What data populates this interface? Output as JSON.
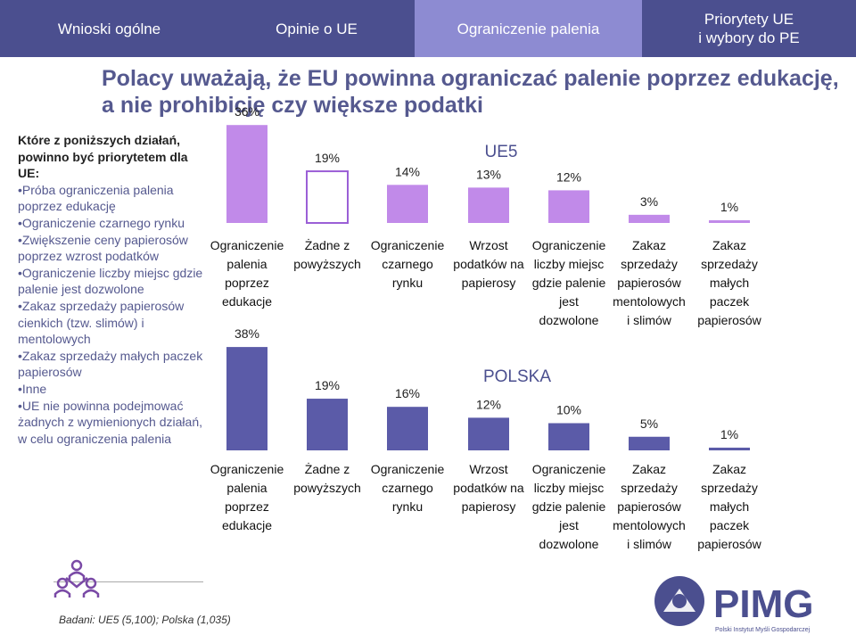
{
  "nav": {
    "tabs": [
      {
        "label": "Wnioski ogólne",
        "active": false
      },
      {
        "label": "Opinie o UE",
        "active": false
      },
      {
        "label": "Ograniczenie palenia",
        "active": true
      },
      {
        "label": "Priorytety UE\ni wybory do PE",
        "active": false
      }
    ]
  },
  "title": {
    "line1": "Polacy uważają, że EU powinna ograniczać palenie poprzez edukację,",
    "line2": "a nie prohibicję czy większe podatki"
  },
  "left_panel": {
    "question": "Które z poniższych działań, powinno być priorytetem dla UE:",
    "options": [
      "Próba ograniczenia palenia poprzez edukację",
      "Ograniczenie czarnego rynku",
      "Zwiększenie ceny papierosów poprzez wzrost podatków",
      "Ograniczenie liczby miejsc gdzie palenie jest dozwolone",
      "Zakaz sprzedaży papierosów cienkich (tzw. slimów) i mentolowych",
      "Zakaz sprzedaży małych paczek papierosów",
      "Inne"
    ],
    "last_note": "UE nie powinna podejmować żadnych z wymienionych działań, w celu ograniczenia palenia"
  },
  "colors": {
    "ue_bar": "#c18ae9",
    "pl_bar": "#5b5ba8",
    "none_bar_border": "#9b5fd6",
    "nav_bg": "#4b4f8f",
    "nav_active": "#8d8bd2",
    "title": "#55598f"
  },
  "chart_data": [
    {
      "type": "bar",
      "title": "UE5",
      "categories": [
        "Ograniczenie palenia poprzez edukacje",
        "Żadne z powyższych",
        "Ograniczenie czarnego rynku",
        "Wrzost podatków na papierosy",
        "Ograniczenie liczby miejsc gdzie palenie jest dozwolone",
        "Zakaz sprzedaży papierosów mentolowych i slimów",
        "Zakaz sprzedaży małych paczek papierosów"
      ],
      "values": [
        36,
        19,
        14,
        13,
        12,
        3,
        1
      ],
      "data_labels": [
        "36%",
        "19%",
        "14%",
        "13%",
        "12%",
        "3%",
        "1%"
      ],
      "outlined_categories": [
        1
      ],
      "ylim": [
        0,
        40
      ]
    },
    {
      "type": "bar",
      "title": "POLSKA",
      "categories": [
        "Ograniczenie palenia poprzez edukacje",
        "Żadne z powyższych",
        "Ograniczenie czarnego rynku",
        "Wrzost podatków na papierosy",
        "Ograniczenie liczby miejsc gdzie palenie jest dozwolone",
        "Zakaz sprzedaży papierosów mentolowych i slimów",
        "Zakaz sprzedaży małych paczek papierosów"
      ],
      "values": [
        38,
        19,
        16,
        12,
        10,
        5,
        1
      ],
      "data_labels": [
        "38%",
        "19%",
        "16%",
        "12%",
        "10%",
        "5%",
        "1%"
      ],
      "outlined_categories": [],
      "ylim": [
        0,
        40
      ]
    }
  ],
  "source": "Badani: UE5 (5,100); Polska (1,035)",
  "logo": {
    "text": "PIMG",
    "subtitle": "Polski Instytut Myśli Gospodarczej",
    "icon": "people-group-icon"
  }
}
